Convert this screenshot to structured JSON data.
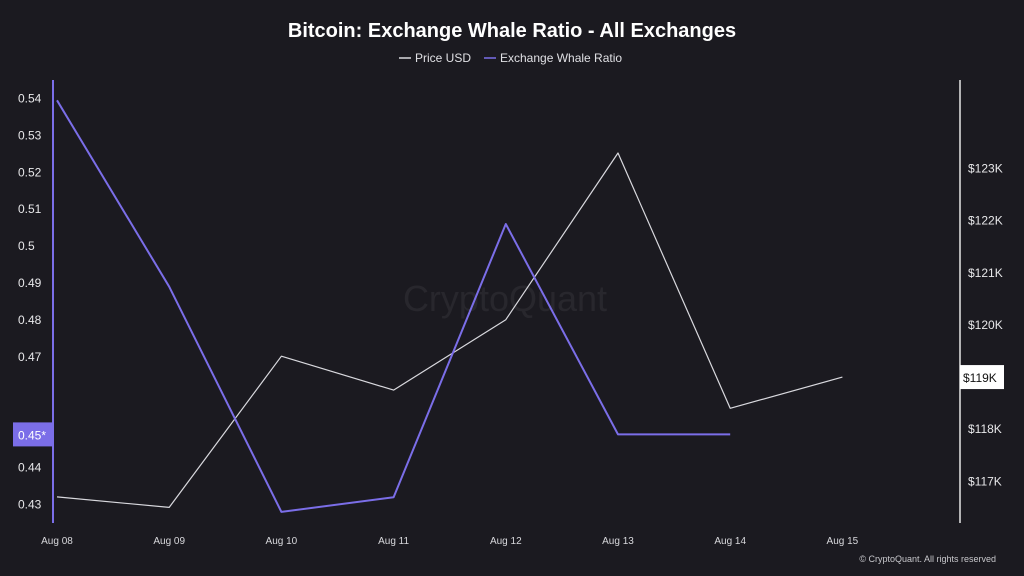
{
  "chart_data": {
    "type": "line",
    "title": "Bitcoin: Exchange Whale Ratio - All Exchanges",
    "categories": [
      "Aug 08",
      "Aug 09",
      "Aug 10",
      "Aug 11",
      "Aug 12",
      "Aug 13",
      "Aug 14",
      "Aug 15"
    ],
    "legend_position": "top-center",
    "grid": false,
    "series": [
      {
        "name": "Price USD",
        "axis": "right",
        "color": "#d9d9de",
        "values": [
          116700,
          116500,
          119400,
          118750,
          120100,
          123300,
          118400,
          119000
        ]
      },
      {
        "name": "Exchange Whale Ratio",
        "axis": "left",
        "color": "#7b6ee8",
        "values": [
          0.5395,
          0.489,
          0.428,
          0.432,
          0.506,
          0.449,
          0.449,
          null
        ]
      }
    ],
    "y_left": {
      "ticks": [
        "0.54",
        "0.53",
        "0.52",
        "0.51",
        "0.5",
        "0.49",
        "0.48",
        "0.47",
        "0.45",
        "0.44",
        "0.43"
      ],
      "ylim": [
        0.425,
        0.545
      ],
      "current_label": "0.45*",
      "current_value": 0.449
    },
    "y_right": {
      "ticks": [
        "$123K",
        "$122K",
        "$121K",
        "$120K",
        "$119K",
        "$118K",
        "$117K"
      ],
      "ylim": [
        116200,
        124700
      ],
      "current_label": "$119K",
      "current_value": 119000
    },
    "watermark": "CryptoQuant",
    "copyright": "© CryptoQuant. All rights reserved"
  },
  "colors": {
    "background": "#1b1a20",
    "whale_ratio": "#7b6ee8",
    "price": "#d9d9de"
  }
}
